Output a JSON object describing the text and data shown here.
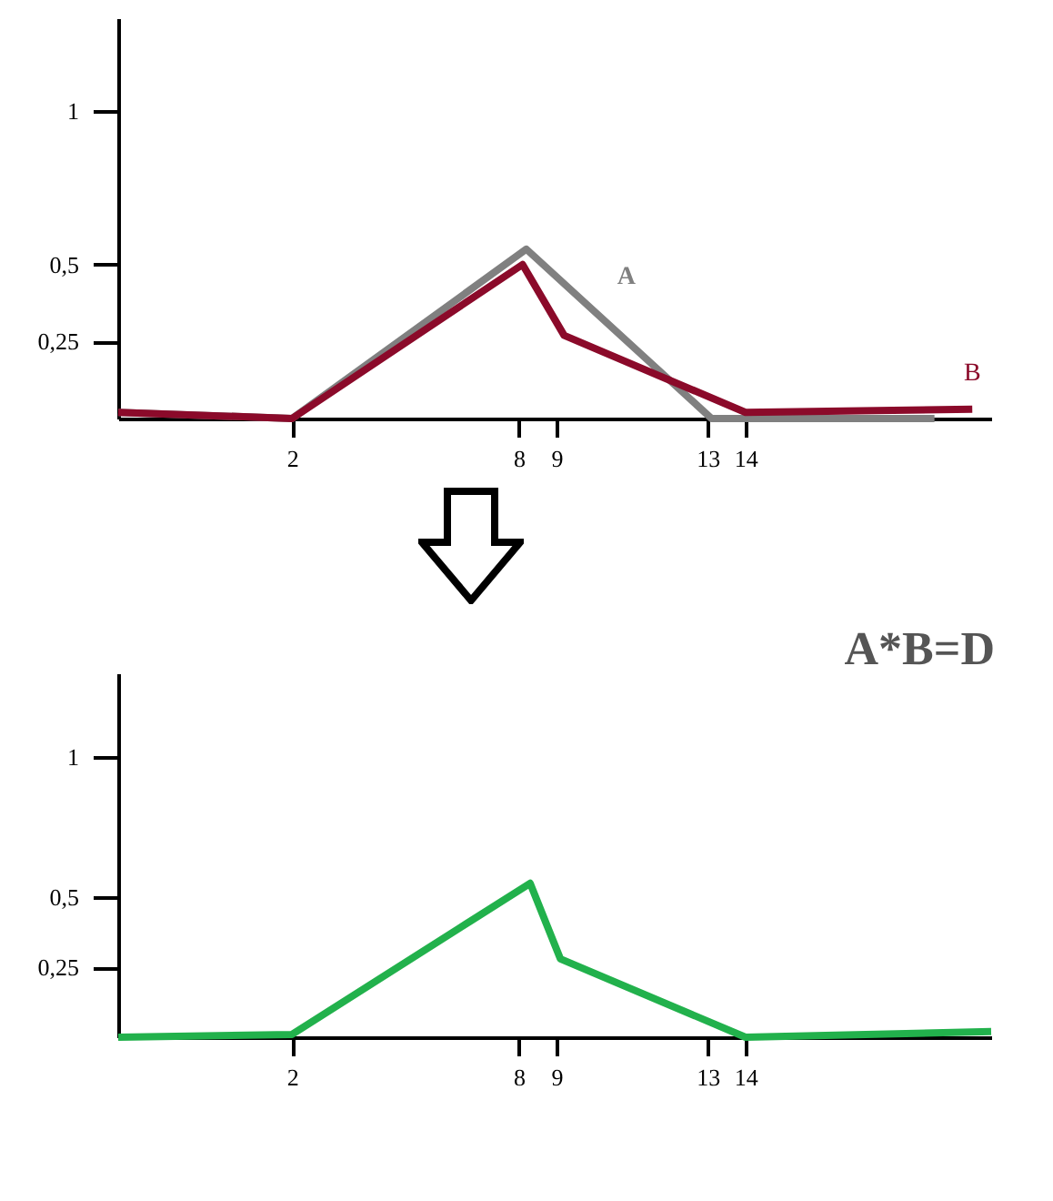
{
  "chart_data": [
    {
      "type": "line",
      "series": [
        {
          "name": "A",
          "color": "#808080",
          "x": [
            -2.6,
            2,
            8.2,
            13.1,
            19
          ],
          "values": [
            0.02,
            0,
            0.55,
            0,
            0
          ]
        },
        {
          "name": "B",
          "color": "#8b0a2a",
          "x": [
            -2.6,
            2,
            8.1,
            9.2,
            14,
            20
          ],
          "values": [
            0.02,
            0,
            0.5,
            0.27,
            0.02,
            0.03
          ]
        }
      ],
      "xlim": [
        -2.6,
        20.5
      ],
      "xticks": [
        2,
        8,
        9,
        13,
        14
      ],
      "ylim": [
        0,
        1.3
      ],
      "yticks": [
        {
          "value": 0.25,
          "label": "0,25"
        },
        {
          "value": 0.5,
          "label": "0,5"
        },
        {
          "value": 1,
          "label": "1"
        }
      ],
      "grid": false,
      "legend": false
    },
    {
      "type": "line",
      "x": [
        -2.6,
        2,
        8.3,
        9.1,
        14,
        20.5
      ],
      "series": [
        {
          "color": "#22b14c",
          "values": [
            0,
            0.01,
            0.55,
            0.28,
            0,
            0.02
          ]
        }
      ],
      "xlim": [
        -2.6,
        20.5
      ],
      "xticks": [
        2,
        8,
        9,
        13,
        14
      ],
      "ylim": [
        0,
        1.3
      ],
      "yticks": [
        {
          "value": 0.25,
          "label": "0,25"
        },
        {
          "value": 0.5,
          "label": "0,5"
        },
        {
          "value": 1,
          "label": "1"
        }
      ],
      "grid": false,
      "legend": false,
      "annotations": [
        "A*B=D"
      ]
    }
  ]
}
